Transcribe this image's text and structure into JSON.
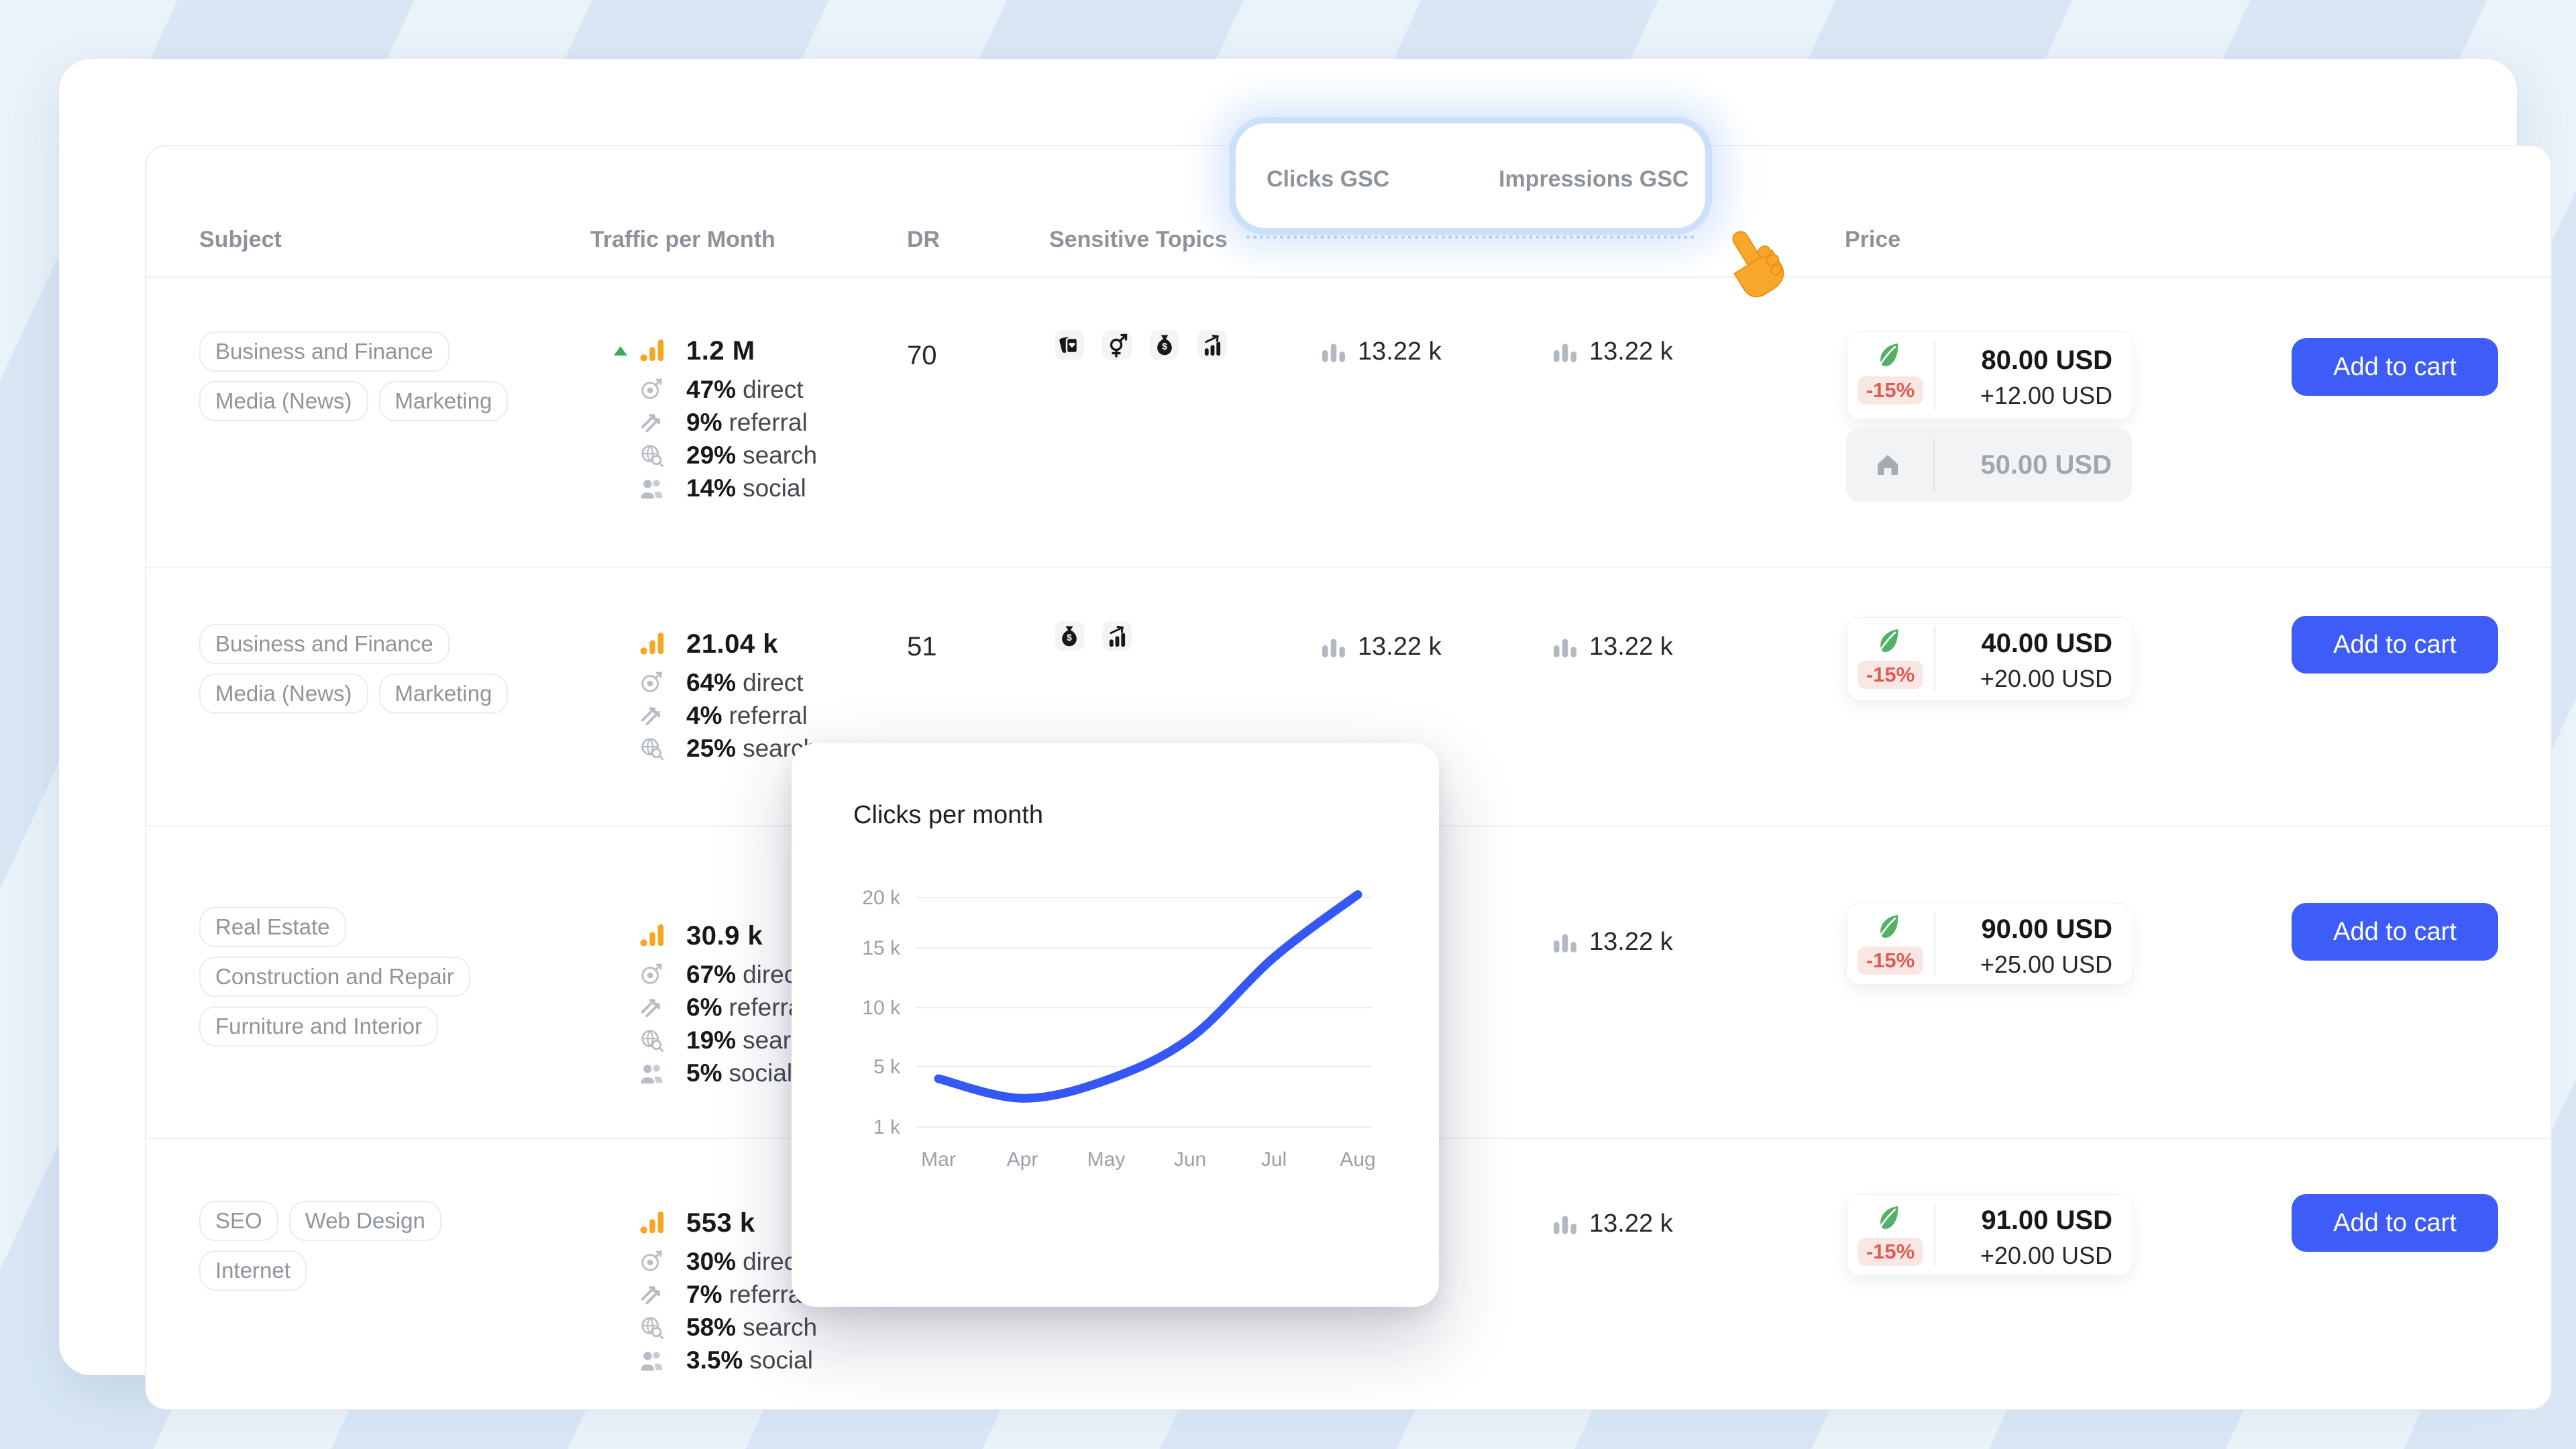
{
  "columns": {
    "subject": "Subject",
    "traffic": "Traffic per Month",
    "dr": "DR",
    "topics": "Sensitive Topics",
    "clicks": "Clicks GSC",
    "impressions": "Impressions GSC",
    "price": "Price"
  },
  "ui": {
    "add_to_cart": "Add to cart"
  },
  "icons": {
    "traffic_source": "analytics-bars",
    "trend": "triangle-up",
    "direct": "target",
    "referral": "diagonal-arrows",
    "search": "globe-magnifier",
    "social": "people",
    "gsc_metric": "small-gray-bars",
    "discount_program": "green-feather-leaf",
    "base_price": "house",
    "tutorial_cursor": "orange-pointing-hand"
  },
  "colors": {
    "accent_blue": "#3e5cf7",
    "chart_line": "#3457f6",
    "discount_red": "#e15b52",
    "discount_bg": "#f9e7e3",
    "leaf_green": "#53b165",
    "trend_green": "#3cab5d",
    "traffic_orange": "#f6a623",
    "background": "#d9e7f5"
  },
  "rows": [
    {
      "tags": [
        "Business and Finance",
        "Media (News)",
        "Marketing"
      ],
      "traffic": {
        "total": "1.2 M",
        "trend": "up",
        "stats": [
          {
            "value": "47%",
            "label": "direct"
          },
          {
            "value": "9%",
            "label": "referral"
          },
          {
            "value": "29%",
            "label": "search"
          },
          {
            "value": "14%",
            "label": "social"
          }
        ]
      },
      "dr": "70",
      "topics": [
        "gambling-cards",
        "adult-gender",
        "money-bag",
        "trading-chart"
      ],
      "clicks": "13.22 k",
      "impressions": "13.22 k",
      "price": {
        "discount": "-15%",
        "current": "80.00 USD",
        "extra": "+12.00 USD",
        "base": "50.00 USD"
      }
    },
    {
      "tags": [
        "Business and Finance",
        "Media (News)",
        "Marketing"
      ],
      "traffic": {
        "total": "21.04 k",
        "stats": [
          {
            "value": "64%",
            "label": "direct"
          },
          {
            "value": "4%",
            "label": "referral"
          },
          {
            "value": "25%",
            "label": "search"
          }
        ]
      },
      "dr": "51",
      "topics": [
        "money-bag",
        "trading-chart"
      ],
      "clicks": "13.22 k",
      "impressions": "13.22 k",
      "price": {
        "discount": "-15%",
        "current": "40.00 USD",
        "extra": "+20.00 USD"
      }
    },
    {
      "tags": [
        "Real Estate",
        "Construction and Repair",
        "Furniture and Interior"
      ],
      "traffic": {
        "total": "30.9 k",
        "stats": [
          {
            "value": "67%",
            "label": "direct"
          },
          {
            "value": "6%",
            "label": "referral"
          },
          {
            "value": "19%",
            "label": "search"
          },
          {
            "value": "5%",
            "label": "social"
          }
        ]
      },
      "impressions": "13.22 k",
      "price": {
        "discount": "-15%",
        "current": "90.00 USD",
        "extra": "+25.00 USD"
      }
    },
    {
      "tags": [
        "SEO",
        "Web Design",
        "Internet"
      ],
      "traffic": {
        "total": "553 k",
        "stats": [
          {
            "value": "30%",
            "label": "direct"
          },
          {
            "value": "7%",
            "label": "referral"
          },
          {
            "value": "58%",
            "label": "search"
          },
          {
            "value": "3.5%",
            "label": "social"
          }
        ]
      },
      "impressions": "13.22 k",
      "price": {
        "discount": "-15%",
        "current": "91.00 USD",
        "extra": "+20.00 USD"
      }
    }
  ],
  "chart_data": {
    "type": "line",
    "title": "Clicks per month",
    "x": [
      "Mar",
      "Apr",
      "May",
      "Jun",
      "Jul",
      "Aug"
    ],
    "values": [
      4200,
      2900,
      4100,
      7400,
      14200,
      20300
    ],
    "y_ticks": [
      {
        "label": "20 k",
        "value": 20000
      },
      {
        "label": "15 k",
        "value": 15000
      },
      {
        "label": "10 k",
        "value": 10000
      },
      {
        "label": "5 k",
        "value": 5000
      },
      {
        "label": "1 k",
        "value": 1000
      }
    ],
    "grid": true,
    "legend": "none",
    "line_color": "#3457f6"
  }
}
